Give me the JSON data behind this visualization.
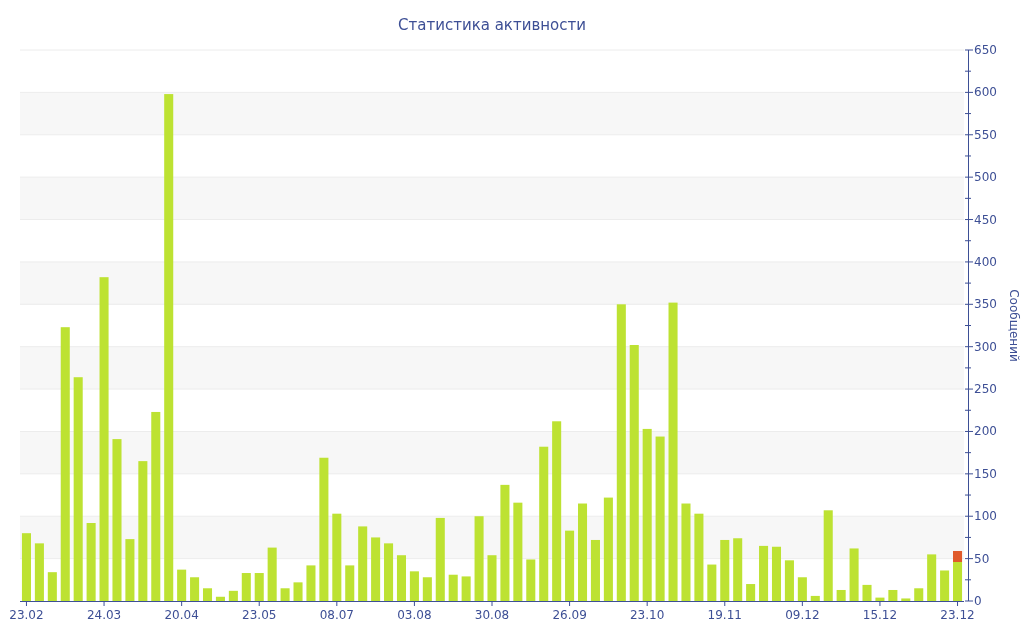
{
  "chart_data": {
    "type": "bar",
    "title": "Статистика активности",
    "ylabel": "Сообщений",
    "categories": [
      "23.02",
      null,
      null,
      null,
      null,
      null,
      "24.03",
      null,
      null,
      null,
      null,
      null,
      "20.04",
      null,
      null,
      null,
      null,
      null,
      "23.05",
      null,
      null,
      null,
      null,
      null,
      "08.07",
      null,
      null,
      null,
      null,
      null,
      "03.08",
      null,
      null,
      null,
      null,
      null,
      "30.08",
      null,
      null,
      null,
      null,
      null,
      "26.09",
      null,
      null,
      null,
      null,
      null,
      "23.10",
      null,
      null,
      null,
      null,
      null,
      "19.11",
      null,
      null,
      null,
      null,
      null,
      "09.12",
      null,
      null,
      null,
      null,
      null,
      "15.12",
      null,
      null,
      null,
      null,
      null,
      "23.12"
    ],
    "stacked": true,
    "series": [
      {
        "color": "#bde232",
        "values": [
          80,
          68,
          34,
          323,
          264,
          92,
          382,
          191,
          73,
          165,
          223,
          598,
          37,
          28,
          15,
          5,
          12,
          33,
          33,
          63,
          15,
          22,
          42,
          169,
          103,
          42,
          88,
          75,
          68,
          54,
          35,
          28,
          98,
          31,
          29,
          100,
          54,
          137,
          116,
          49,
          182,
          212,
          83,
          115,
          72,
          122,
          350,
          302,
          203,
          194,
          352,
          115,
          103,
          43,
          72,
          74,
          20,
          65,
          64,
          48,
          28,
          6,
          107,
          13,
          62,
          19,
          4,
          13,
          3,
          15,
          55,
          36,
          46
        ]
      },
      {
        "color": "#e05a2b",
        "values": [
          null,
          null,
          null,
          null,
          null,
          null,
          null,
          null,
          null,
          null,
          null,
          null,
          null,
          null,
          null,
          null,
          null,
          null,
          null,
          null,
          null,
          null,
          null,
          null,
          null,
          null,
          null,
          null,
          null,
          null,
          null,
          null,
          null,
          null,
          null,
          null,
          null,
          null,
          null,
          null,
          null,
          null,
          null,
          null,
          null,
          null,
          null,
          null,
          null,
          null,
          null,
          null,
          null,
          null,
          null,
          null,
          null,
          null,
          null,
          null,
          null,
          null,
          null,
          null,
          null,
          null,
          null,
          null,
          null,
          null,
          null,
          null,
          13
        ]
      }
    ],
    "ylim": [
      0,
      650
    ],
    "yticks": [
      0,
      {
        "value": 25,
        "label": null
      },
      50,
      {
        "value": 75,
        "label": null
      },
      100,
      {
        "value": 125,
        "label": null
      },
      150,
      {
        "value": 175,
        "label": null
      },
      200,
      {
        "value": 225,
        "label": null
      },
      250,
      {
        "value": 275,
        "label": null
      },
      300,
      {
        "value": 325,
        "label": null
      },
      350,
      {
        "value": 375,
        "label": null
      },
      400,
      {
        "value": 425,
        "label": null
      },
      450,
      {
        "value": 475,
        "label": null
      },
      500,
      {
        "value": 525,
        "label": null
      },
      550,
      {
        "value": 575,
        "label": null
      },
      600,
      {
        "value": 625,
        "label": null
      },
      650
    ],
    "grid": "y"
  }
}
